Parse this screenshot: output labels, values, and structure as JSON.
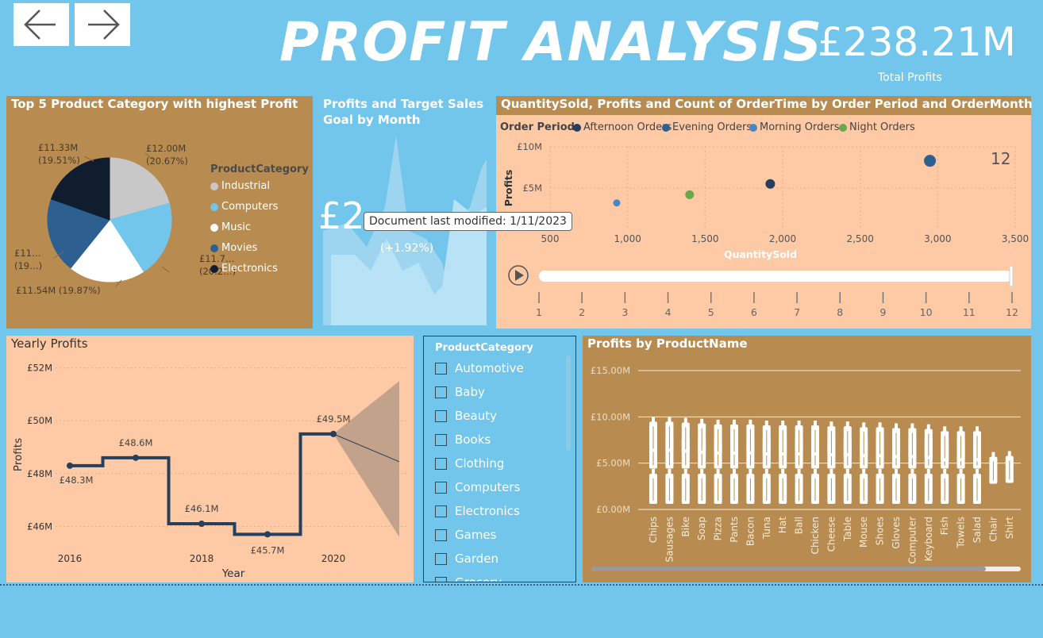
{
  "header": {
    "title": "PROFIT ANALYSIS",
    "kpi_value": "£238.21M",
    "kpi_label": "Total Profits"
  },
  "colors": {
    "background": "#72c5eb",
    "panel_brown": "#b88c50",
    "panel_peach": "#fec9a5",
    "navy": "#253f5c"
  },
  "pie": {
    "title": "Top 5 Product Category with highest Profit",
    "legend_title": "ProductCategory",
    "labels": [
      "£12.00M",
      "(20.67%)",
      "£11.7…",
      "(20.2…)",
      "£11.54M (19.87%)",
      "£11…",
      "(19…)",
      "£11.33M",
      "(19.51%)"
    ],
    "chart_data": {
      "type": "pie",
      "categories": [
        "Industrial",
        "Computers",
        "Music",
        "Movies",
        "Electronics"
      ],
      "values": [
        12.0,
        11.7,
        11.54,
        11.4,
        11.33
      ],
      "colors": [
        "#c8c8c8",
        "#72c5eb",
        "#ffffff",
        "#2e5f91",
        "#0f1d2e"
      ]
    }
  },
  "target": {
    "title_line1": "Profits and Target Sales",
    "title_line2": "Goal by Month",
    "value": "£2",
    "value_tail": "3.33M",
    "change": "(+1.92%)"
  },
  "tooltip": {
    "text": "Document last modified: 1/11/2023"
  },
  "scatter": {
    "title": "QuantitySold, Profits and Count of OrderTime by Order Period and OrderMonth",
    "legend_title": "Order Period",
    "play_axis_value": "12",
    "play_ticks": [
      "1",
      "2",
      "3",
      "4",
      "5",
      "6",
      "7",
      "8",
      "9",
      "10",
      "11",
      "12"
    ],
    "chart_data": {
      "type": "scatter",
      "xlabel": "QuantitySold",
      "ylabel": "Profits",
      "xlim": [
        500,
        3500
      ],
      "ylim": [
        0,
        10
      ],
      "x_ticks": [
        "500",
        "1,000",
        "1,500",
        "2,000",
        "2,500",
        "3,000",
        "3,500"
      ],
      "y_ticks": [
        "£5M",
        "£10M"
      ],
      "series": [
        {
          "name": "Afternoon Orders",
          "color": "#253f5c",
          "points": [
            [
              1920,
              5.5
            ]
          ]
        },
        {
          "name": "Evening Orders",
          "color": "#2e5f91",
          "points": [
            [
              2950,
              8.3
            ]
          ]
        },
        {
          "name": "Morning Orders",
          "color": "#4a86c4",
          "points": [
            [
              930,
              3.2
            ]
          ]
        },
        {
          "name": "Night Orders",
          "color": "#6aa84f",
          "points": [
            [
              1400,
              4.2
            ]
          ]
        }
      ]
    }
  },
  "yearly": {
    "title": "Yearly Profits",
    "chart_data": {
      "type": "line",
      "xlabel": "Year",
      "ylabel": "Profits",
      "x": [
        2016,
        2017,
        2018,
        2019,
        2020
      ],
      "values": [
        48.3,
        48.6,
        46.1,
        45.7,
        49.5
      ],
      "data_labels": [
        "£48.3M",
        "£48.6M",
        "£46.1M",
        "£45.7M",
        "£49.5M"
      ],
      "x_ticks": [
        "2016",
        "2018",
        "2020"
      ],
      "y_ticks": [
        "£46M",
        "£48M",
        "£50M",
        "£52M"
      ],
      "ylim": [
        45.2,
        52.2
      ]
    }
  },
  "slicer": {
    "title": "ProductCategory",
    "items": [
      "Automotive",
      "Baby",
      "Beauty",
      "Books",
      "Clothing",
      "Computers",
      "Electronics",
      "Games",
      "Garden",
      "Grocery"
    ]
  },
  "products": {
    "title": "Profits by ProductName",
    "chart_data": {
      "type": "bar",
      "categories": [
        "Chips",
        "Sausages",
        "Bike",
        "Soap",
        "Pizza",
        "Pants",
        "Bacon",
        "Tuna",
        "Hat",
        "Ball",
        "Chicken",
        "Cheese",
        "Table",
        "Mouse",
        "Shoes",
        "Gloves",
        "Computer",
        "Keyboard",
        "Fish",
        "Towels",
        "Salad",
        "Chair",
        "Shirt"
      ],
      "values": [
        10.0,
        10.0,
        9.9,
        9.8,
        9.7,
        9.7,
        9.7,
        9.6,
        9.6,
        9.6,
        9.6,
        9.5,
        9.5,
        9.4,
        9.4,
        9.3,
        9.3,
        9.2,
        9.1,
        9.1,
        9.0,
        6.2,
        6.3
      ],
      "y_ticks": [
        "£0.00M",
        "£5.00M",
        "£10.00M",
        "£15.00M"
      ],
      "ylim": [
        0,
        15
      ]
    }
  }
}
